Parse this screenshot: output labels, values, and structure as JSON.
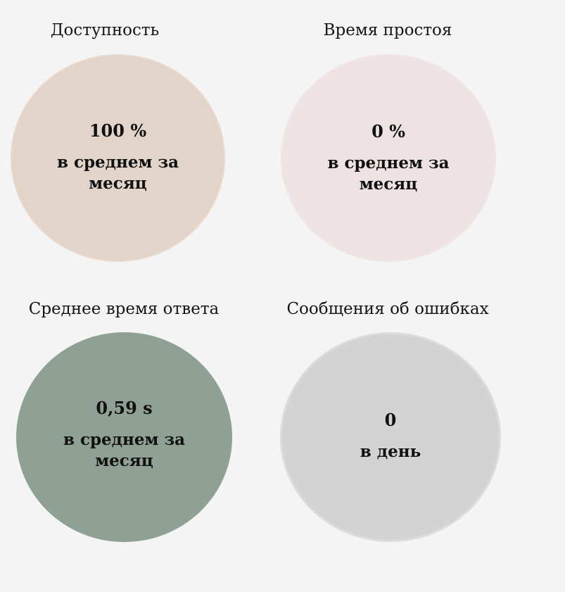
{
  "cards": [
    {
      "title": "Доступность",
      "value": "100 %",
      "period": "в среднем за месяц",
      "color": "#e2d4c9",
      "border": "#ead9cd"
    },
    {
      "title": "Время простоя",
      "value": "0 %",
      "period": "в среднем за месяц",
      "color": "#ede3e3",
      "border": "#f0e4e4"
    },
    {
      "title": "Среднее время ответа",
      "value": "0,59 s",
      "period": "в среднем за месяц",
      "color": "#8fa195",
      "border": "#8fa195"
    },
    {
      "title": "Сообщения об ошибках",
      "value": "0",
      "period": "в день",
      "color": "#d3d3d3",
      "border": "#dcdcdc"
    }
  ]
}
